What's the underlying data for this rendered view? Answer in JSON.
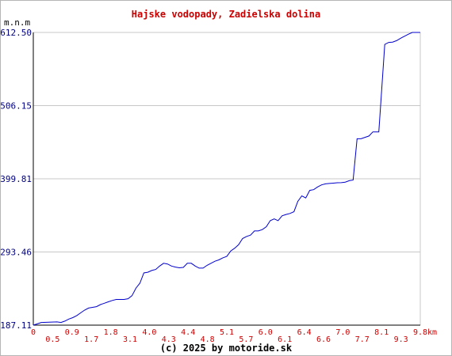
{
  "chart_data": {
    "type": "line",
    "title": "Hajske vodopady, Zadielska dolina",
    "ylabel": "m.n.m",
    "xlabel": "km",
    "credit": "(c) 2025 by motoride.sk",
    "y_ticks": [
      "187.11",
      "293.46",
      "399.81",
      "506.15",
      "612.50"
    ],
    "ylim": [
      187.11,
      612.5
    ],
    "xlim": [
      0,
      9.8
    ],
    "x_ticks_upper": [
      "0",
      "0.9",
      "1.8",
      "4.0",
      "4.4",
      "5.1",
      "6.0",
      "6.4",
      "7.0",
      "8.1",
      "9.8"
    ],
    "x_ticks_lower": [
      "0.5",
      "1.7",
      "3.1",
      "4.3",
      "4.8",
      "5.7",
      "6.1",
      "6.6",
      "7.7",
      "9.3"
    ],
    "grid": true,
    "series": [
      {
        "color": "#0000cc",
        "x": [
          0,
          0.1,
          0.2,
          0.4,
          0.6,
          0.7,
          0.8,
          0.9,
          1.0,
          1.1,
          1.2,
          1.3,
          1.4,
          1.5,
          1.6,
          1.7,
          1.8,
          1.9,
          2.0,
          2.1,
          2.2,
          2.3,
          2.4,
          2.5,
          2.6,
          2.7,
          2.8,
          2.9,
          3.0,
          3.1,
          3.2,
          3.3,
          3.4,
          3.5,
          3.6,
          3.7,
          3.8,
          3.9,
          4.0,
          4.1,
          4.2,
          4.3,
          4.4,
          4.5,
          4.6,
          4.7,
          4.8,
          4.9,
          5.0,
          5.1,
          5.2,
          5.3,
          5.4,
          5.5,
          5.6,
          5.7,
          5.8,
          5.9,
          6.0,
          6.1,
          6.2,
          6.3,
          6.4,
          6.5,
          6.6,
          6.7,
          6.8,
          6.9,
          7.0,
          7.1,
          7.2,
          7.3,
          7.4,
          7.5,
          7.6,
          7.7,
          7.8,
          7.9,
          8.0,
          8.1,
          8.2,
          8.3,
          8.4,
          8.5,
          8.6,
          8.7,
          8.75,
          8.8,
          8.9,
          9.0,
          9.1,
          9.2,
          9.3,
          9.4,
          9.5,
          9.6,
          9.7,
          9.8
        ],
        "y": [
          187.11,
          189,
          191,
          191.5,
          191.8,
          191,
          193,
          196,
          198,
          201,
          205,
          209,
          212,
          213,
          214,
          217,
          219,
          221,
          223,
          224.5,
          224.5,
          224.5,
          225.5,
          230,
          241,
          248,
          263,
          264,
          266.5,
          268,
          273,
          277,
          276,
          273,
          271.5,
          270.5,
          271,
          277,
          277,
          273,
          270,
          270,
          274,
          277,
          280,
          282,
          285,
          287,
          295,
          299,
          304,
          313,
          316,
          318,
          324,
          324,
          326,
          330,
          339,
          341.5,
          339,
          346,
          348,
          349.5,
          352,
          367,
          375,
          372,
          383,
          384,
          388,
          391,
          392.5,
          393,
          393.5,
          394,
          394.2,
          395,
          397,
          398,
          458,
          458,
          460,
          462,
          468,
          468,
          468,
          510,
          595,
          598,
          598.5,
          600.5,
          604,
          607,
          610,
          612.5,
          612.5,
          612.5
        ]
      }
    ]
  }
}
